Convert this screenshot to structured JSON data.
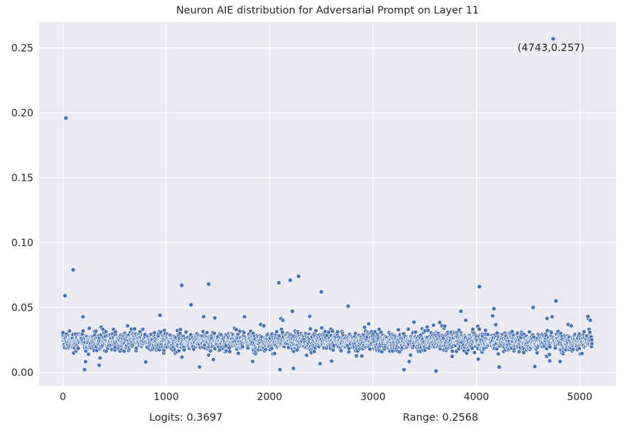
{
  "chart_data": {
    "type": "scatter",
    "title": "Neuron AIE distribution for Adversarial Prompt on Layer 11",
    "xlabel": "",
    "ylabel": "",
    "xlim": [
      -230,
      5350
    ],
    "ylim": [
      -0.0105,
      0.27
    ],
    "xticks": [
      0,
      1000,
      2000,
      3000,
      4000,
      5000
    ],
    "yticks": [
      0.0,
      0.05,
      0.1,
      0.15,
      0.2,
      0.25
    ],
    "xtick_labels": [
      "0",
      "1000",
      "2000",
      "3000",
      "4000",
      "5000"
    ],
    "ytick_labels": [
      "0.00",
      "0.05",
      "0.10",
      "0.15",
      "0.20",
      "0.25"
    ],
    "grid": true,
    "marker_color": "#4c72b0",
    "background_color": "#eaeaf2",
    "num_points": 5120,
    "bulk_distribution": {
      "center": 0.024,
      "typical_low": 0.015,
      "typical_high": 0.033
    },
    "outliers": [
      {
        "x": 30,
        "y": 0.196
      },
      {
        "x": 100,
        "y": 0.079
      },
      {
        "x": 20,
        "y": 0.059
      },
      {
        "x": 1150,
        "y": 0.067
      },
      {
        "x": 1410,
        "y": 0.068
      },
      {
        "x": 1240,
        "y": 0.052
      },
      {
        "x": 2090,
        "y": 0.069
      },
      {
        "x": 2200,
        "y": 0.071
      },
      {
        "x": 2280,
        "y": 0.074
      },
      {
        "x": 2500,
        "y": 0.062
      },
      {
        "x": 2760,
        "y": 0.051
      },
      {
        "x": 4030,
        "y": 0.066
      },
      {
        "x": 4170,
        "y": 0.049
      },
      {
        "x": 4770,
        "y": 0.055
      },
      {
        "x": 4550,
        "y": 0.05
      },
      {
        "x": 3850,
        "y": 0.047
      },
      {
        "x": 2220,
        "y": 0.047
      },
      {
        "x": 940,
        "y": 0.044
      },
      {
        "x": 5080,
        "y": 0.043
      },
      {
        "x": 4743,
        "y": 0.257
      },
      {
        "x": 3610,
        "y": 0.001
      },
      {
        "x": 2100,
        "y": 0.002
      },
      {
        "x": 210,
        "y": 0.002
      },
      {
        "x": 3300,
        "y": 0.002
      },
      {
        "x": 4220,
        "y": 0.004
      },
      {
        "x": 2230,
        "y": 0.003
      }
    ],
    "annotation": {
      "text": "(4743,0.257)",
      "x": 4743,
      "y": 0.257
    }
  },
  "footer": {
    "logits": "Logits: 0.3697",
    "range": "Range: 0.2568"
  }
}
